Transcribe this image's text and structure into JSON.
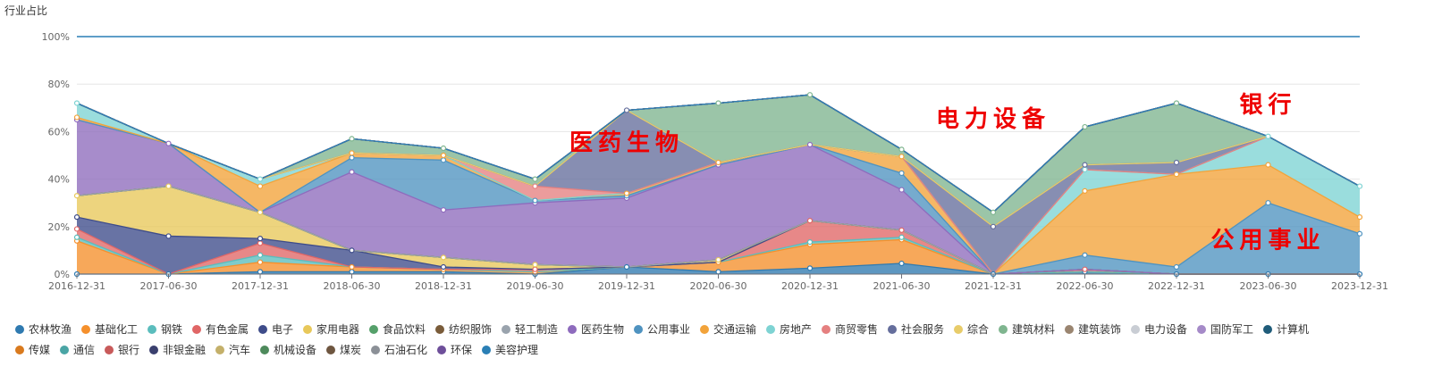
{
  "chart_data": {
    "type": "area",
    "stacked": true,
    "ylabel": "行业占比",
    "xlabel": "",
    "ylim": [
      0,
      100
    ],
    "yticks": [
      "0%",
      "20%",
      "40%",
      "60%",
      "80%",
      "100%"
    ],
    "categories": [
      "2016-12-31",
      "2017-06-30",
      "2017-12-31",
      "2018-06-30",
      "2018-12-31",
      "2019-06-30",
      "2019-12-31",
      "2020-06-30",
      "2020-12-31",
      "2021-06-30",
      "2021-12-31",
      "2022-06-30",
      "2022-12-31",
      "2023-06-30",
      "2023-12-31"
    ],
    "legend_position": "bottom",
    "annotations": [
      {
        "text": "医药生物",
        "x": "2019-12-31",
        "y": 52
      },
      {
        "text": "电力设备",
        "x": "2021-12-31",
        "y": 62
      },
      {
        "text": "银行",
        "x": "2023-06-30",
        "y": 68
      },
      {
        "text": "公用事业",
        "x": "2023-06-30",
        "y": 11
      }
    ],
    "series": [
      {
        "name": "农林牧渔",
        "color": "#2f7ab0",
        "values": [
          0,
          0,
          1,
          1,
          1,
          0,
          3,
          1,
          2.5,
          4.5,
          0,
          1,
          0,
          0,
          0
        ]
      },
      {
        "name": "基础化工",
        "color": "#f5902c",
        "values": [
          14,
          0,
          4,
          2,
          1,
          1,
          0,
          4,
          10,
          10,
          0,
          0,
          0,
          0,
          0
        ]
      },
      {
        "name": "钢铁",
        "color": "#5bbdbd",
        "values": [
          1.5,
          0,
          3,
          0,
          0,
          0,
          0,
          0,
          1,
          1,
          0,
          0,
          0,
          0,
          0
        ]
      },
      {
        "name": "有色金属",
        "color": "#e06666",
        "values": [
          3.5,
          0,
          5,
          0,
          0,
          1,
          0,
          0,
          9,
          3,
          0,
          1,
          0,
          0,
          0
        ]
      },
      {
        "name": "电子",
        "color": "#3e4c8a",
        "values": [
          5,
          16,
          2,
          7,
          1,
          0,
          0,
          0,
          0,
          0,
          0,
          0,
          0,
          0,
          0
        ]
      },
      {
        "name": "家用电器",
        "color": "#e8c85a",
        "values": [
          9,
          21,
          11,
          0,
          4,
          2,
          0,
          1,
          0,
          0,
          0,
          0,
          0,
          0,
          0
        ]
      },
      {
        "name": "食品饮料",
        "color": "#55a06a",
        "values": [
          0,
          0,
          0,
          0,
          0,
          0,
          0,
          0,
          0,
          0,
          0,
          0,
          0,
          0,
          0
        ]
      },
      {
        "name": "纺织服饰",
        "color": "#7a5c3a",
        "values": [
          0,
          0,
          0,
          0,
          0,
          0,
          0,
          0,
          0,
          0,
          0,
          0,
          0,
          0,
          0
        ]
      },
      {
        "name": "轻工制造",
        "color": "#9aa3ad",
        "values": [
          0,
          0,
          0,
          0,
          0,
          0,
          0,
          0,
          0,
          0,
          0,
          0,
          0,
          0,
          0
        ]
      },
      {
        "name": "医药生物",
        "color": "#8e6bbd",
        "values": [
          32,
          18,
          0,
          33,
          20,
          26,
          29,
          40,
          32,
          17,
          0,
          0,
          0,
          0,
          0
        ]
      },
      {
        "name": "公用事业",
        "color": "#4f93c0",
        "values": [
          0,
          0,
          0,
          6,
          21,
          1,
          1,
          0,
          0,
          7,
          0,
          6,
          3,
          30,
          17
        ]
      },
      {
        "name": "交通运输",
        "color": "#f2a33a",
        "values": [
          1,
          0,
          11,
          2,
          2,
          0,
          1,
          1,
          0,
          7,
          0,
          27,
          39,
          16,
          7
        ]
      },
      {
        "name": "房地产",
        "color": "#7ed3d3",
        "values": [
          6,
          0,
          3,
          0,
          0,
          0,
          0,
          0,
          0,
          0,
          0,
          9,
          0,
          12,
          13
        ]
      },
      {
        "name": "商贸零售",
        "color": "#e58080",
        "values": [
          0,
          0,
          0,
          0,
          0,
          6,
          0,
          0,
          0,
          0,
          0,
          0,
          0,
          0,
          0
        ]
      },
      {
        "name": "社会服务",
        "color": "#656e9c",
        "values": [
          0,
          0,
          0,
          0,
          0,
          0,
          35,
          0,
          0,
          0,
          20,
          2,
          5,
          0,
          0
        ]
      },
      {
        "name": "综合",
        "color": "#e8cc6a",
        "values": [
          0,
          0,
          0,
          0,
          0,
          0,
          0,
          0,
          0,
          0,
          0,
          0,
          0,
          0,
          0
        ]
      },
      {
        "name": "建筑材料",
        "color": "#7fb58f",
        "values": [
          0,
          0,
          0,
          6,
          3,
          3,
          0,
          25,
          21,
          3,
          6,
          16,
          25,
          0,
          0
        ]
      },
      {
        "name": "建筑装饰",
        "color": "#9a8570",
        "values": [
          0,
          0,
          0,
          0,
          0,
          0,
          0,
          0,
          0,
          0,
          0,
          0,
          0,
          0,
          0
        ]
      },
      {
        "name": "电力设备",
        "color": "#c9cdd4",
        "values": [
          0,
          0,
          0,
          0,
          0,
          0,
          0,
          0,
          0,
          0,
          0,
          0,
          0,
          0,
          0
        ]
      },
      {
        "name": "国防军工",
        "color": "#a58ac8",
        "values": [
          0,
          0,
          0,
          0,
          0,
          0,
          0,
          0,
          0,
          0,
          0,
          0,
          0,
          0,
          0
        ]
      },
      {
        "name": "计算机",
        "color": "#1f5c7a",
        "values": [
          0,
          0,
          0,
          0,
          0,
          0,
          0,
          0,
          0,
          0,
          0,
          0,
          0,
          0,
          0
        ]
      },
      {
        "name": "传媒",
        "color": "#d97a1e",
        "values": [
          0,
          0,
          0,
          0,
          0,
          0,
          0,
          0,
          0,
          0,
          0,
          0,
          0,
          0,
          0
        ]
      },
      {
        "name": "通信",
        "color": "#4aa5a5",
        "values": [
          0,
          0,
          0,
          0,
          0,
          0,
          0,
          0,
          0,
          0,
          0,
          0,
          0,
          0,
          0
        ]
      },
      {
        "name": "银行",
        "color": "#c85a5a",
        "values": [
          0,
          0,
          0,
          0,
          0,
          0,
          0,
          0,
          0,
          0,
          0,
          0,
          0,
          0,
          0
        ]
      },
      {
        "name": "非银金融",
        "color": "#3a3f6e",
        "values": [
          0,
          0,
          0,
          0,
          0,
          0,
          0,
          0,
          0,
          0,
          0,
          0,
          0,
          0,
          0
        ]
      },
      {
        "name": "汽车",
        "color": "#c4b06a",
        "values": [
          0,
          0,
          0,
          0,
          0,
          0,
          0,
          0,
          0,
          0,
          0,
          0,
          0,
          0,
          0
        ]
      },
      {
        "name": "机械设备",
        "color": "#4e8a5c",
        "values": [
          0,
          0,
          0,
          0,
          0,
          0,
          0,
          0,
          0,
          0,
          0,
          0,
          0,
          0,
          0
        ]
      },
      {
        "name": "煤炭",
        "color": "#6e5640",
        "values": [
          0,
          0,
          0,
          0,
          0,
          0,
          0,
          0,
          0,
          0,
          0,
          0,
          0,
          0,
          0
        ]
      },
      {
        "name": "石油石化",
        "color": "#8b9097",
        "values": [
          0,
          0,
          0,
          0,
          0,
          0,
          0,
          0,
          0,
          0,
          0,
          0,
          0,
          0,
          0
        ]
      },
      {
        "name": "环保",
        "color": "#6e4f9a",
        "values": [
          0,
          0,
          0,
          0,
          0,
          0,
          0,
          0,
          0,
          0,
          0,
          0,
          0,
          0,
          0
        ]
      },
      {
        "name": "美容护理",
        "color": "#2a7fb5",
        "values": [
          0,
          0,
          0,
          0,
          0,
          0,
          0,
          0,
          0,
          0,
          0,
          0,
          0,
          0,
          0
        ]
      }
    ]
  }
}
